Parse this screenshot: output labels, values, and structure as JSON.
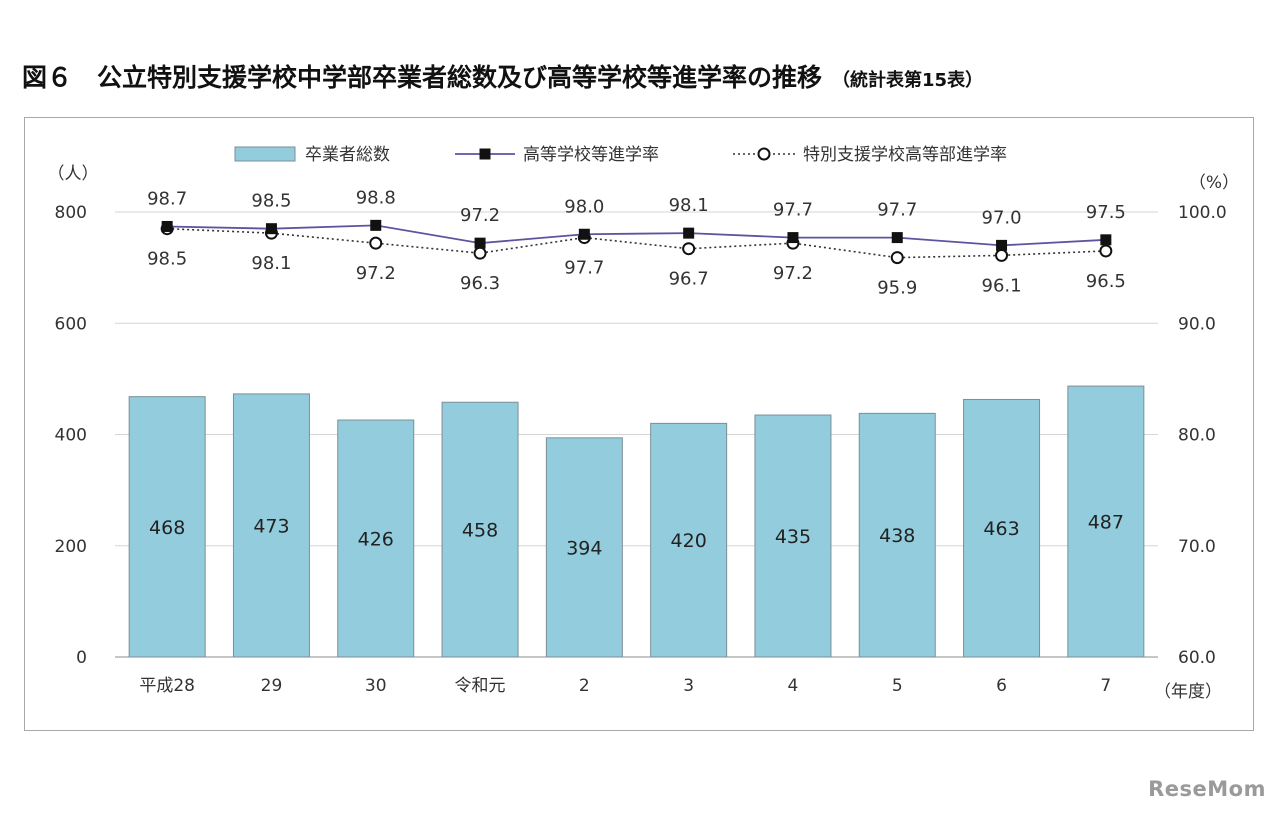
{
  "title": "図６　公立特別支援学校中学部卒業者総数及び高等学校等進学率の推移",
  "subtitle": "（統計表第15表）",
  "watermark": "ReseMom",
  "chart_data": {
    "type": "bar",
    "categories": [
      "平成28",
      "29",
      "30",
      "令和元",
      "2",
      "3",
      "4",
      "5",
      "6",
      "7"
    ],
    "x_unit": "（年度）",
    "series": [
      {
        "name": "卒業者総数",
        "type": "bar",
        "axis": "left",
        "values": [
          468,
          473,
          426,
          458,
          394,
          420,
          435,
          438,
          463,
          487
        ],
        "color": "#93cddd"
      },
      {
        "name": "高等学校等進学率",
        "type": "line",
        "axis": "right",
        "marker": "filled-square",
        "values": [
          98.7,
          98.5,
          98.8,
          97.2,
          98.0,
          98.1,
          97.7,
          97.7,
          97.0,
          97.5
        ],
        "color": "#5b55a0"
      },
      {
        "name": "特別支援学校高等部進学率",
        "type": "line",
        "axis": "right",
        "marker": "open-circle",
        "dash": "dotted",
        "values": [
          98.5,
          98.1,
          97.2,
          96.3,
          97.7,
          96.7,
          97.2,
          95.9,
          96.1,
          96.5
        ],
        "color": "#333333"
      }
    ],
    "y_left": {
      "unit": "（人）",
      "ticks": [
        "0",
        "200",
        "400",
        "600",
        "800"
      ],
      "range": [
        0,
        800
      ]
    },
    "y_right": {
      "unit": "（%）",
      "ticks": [
        "60.0",
        "70.0",
        "80.0",
        "90.0",
        "100.0"
      ],
      "range": [
        60,
        100
      ]
    },
    "grid": true,
    "legend_position": "top"
  }
}
